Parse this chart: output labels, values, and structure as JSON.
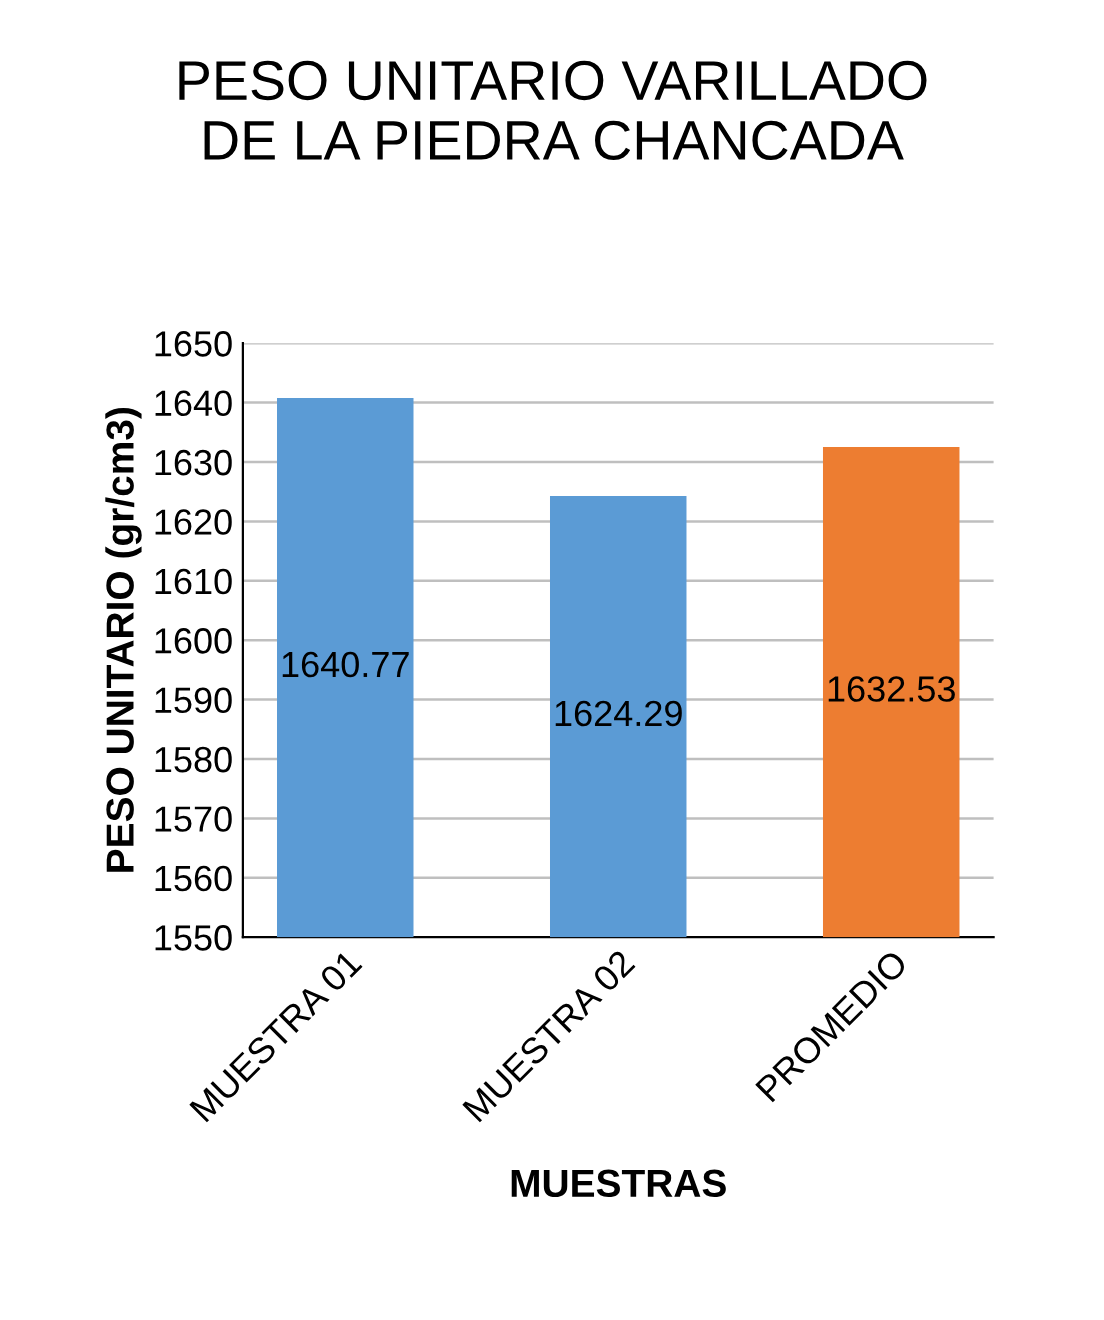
{
  "chart_data": {
    "type": "bar",
    "title": "PESO UNITARIO VARILLADO\nDE LA PIEDRA CHANCADA",
    "xlabel": "MUESTRAS",
    "ylabel": "PESO UNITARIO (gr/cm3)",
    "categories": [
      "MUESTRA 01",
      "MUESTRA 02",
      "PROMEDIO"
    ],
    "values": [
      1640.77,
      1624.29,
      1632.53
    ],
    "colors": [
      "#5b9bd5",
      "#5b9bd5",
      "#ed7d31"
    ],
    "ylim": [
      1550,
      1650
    ],
    "yticks": [
      1550,
      1560,
      1570,
      1580,
      1590,
      1600,
      1610,
      1620,
      1630,
      1640,
      1650
    ],
    "grid": "y",
    "data_labels": true
  }
}
